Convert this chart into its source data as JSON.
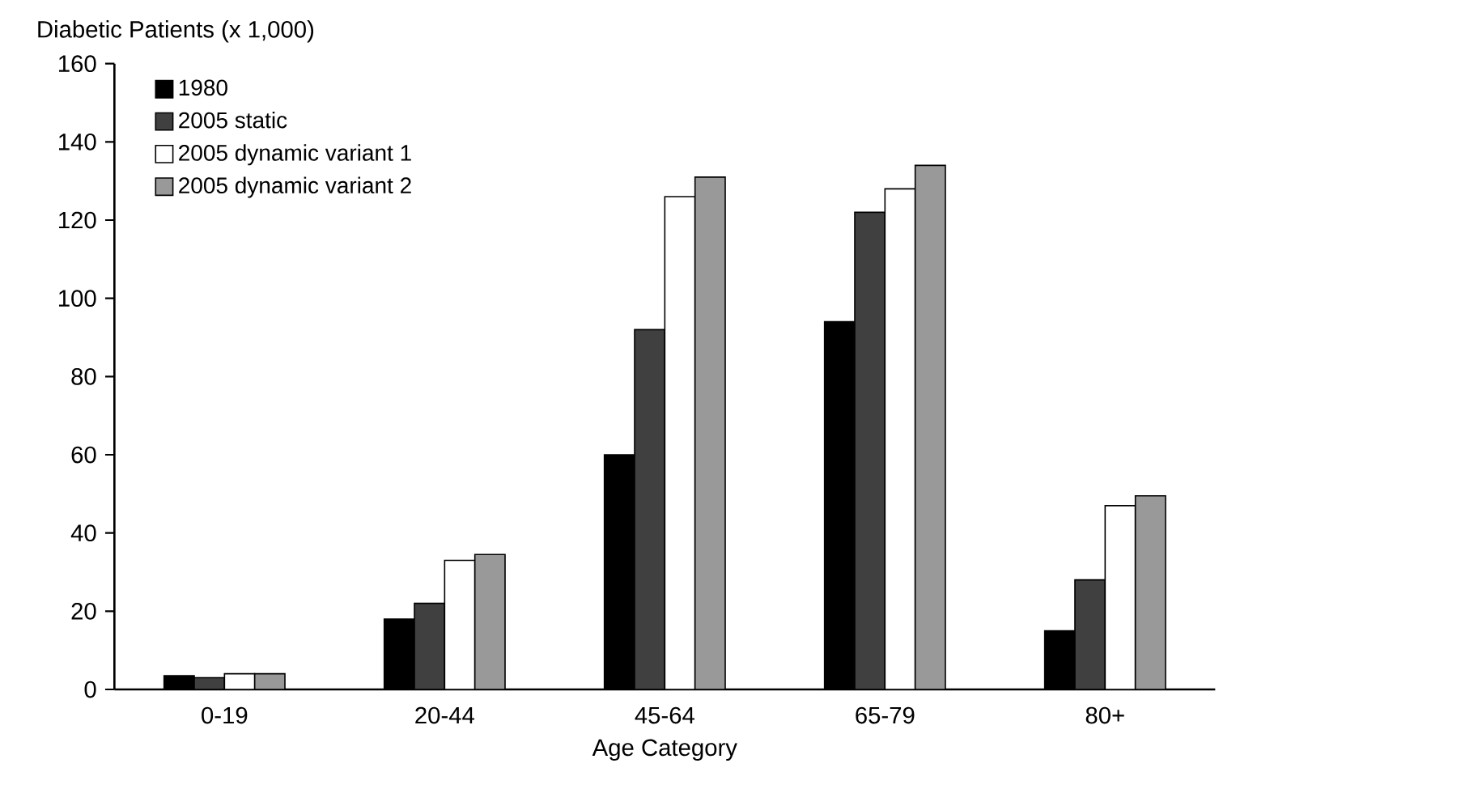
{
  "chart_data": {
    "type": "bar",
    "xlabel": "Age Category",
    "ylabel": "Diabetic Patients (x 1,000)",
    "categories": [
      "0-19",
      "20-44",
      "45-64",
      "65-79",
      "80+"
    ],
    "series": [
      {
        "name": "1980",
        "color": "#000000",
        "values": [
          3.5,
          18,
          60,
          94,
          15
        ]
      },
      {
        "name": "2005 static",
        "color": "#404040",
        "values": [
          3,
          22,
          92,
          122,
          28
        ]
      },
      {
        "name": "2005 dynamic variant 1",
        "color": "#ffffff",
        "values": [
          4,
          33,
          126,
          128,
          47
        ]
      },
      {
        "name": "2005 dynamic variant 2",
        "color": "#999999",
        "values": [
          4,
          34.5,
          131,
          134,
          49.5
        ]
      }
    ],
    "ylim": [
      0,
      160
    ],
    "yticks": [
      0,
      20,
      40,
      60,
      80,
      100,
      120,
      140,
      160
    ],
    "legend": "top left"
  }
}
